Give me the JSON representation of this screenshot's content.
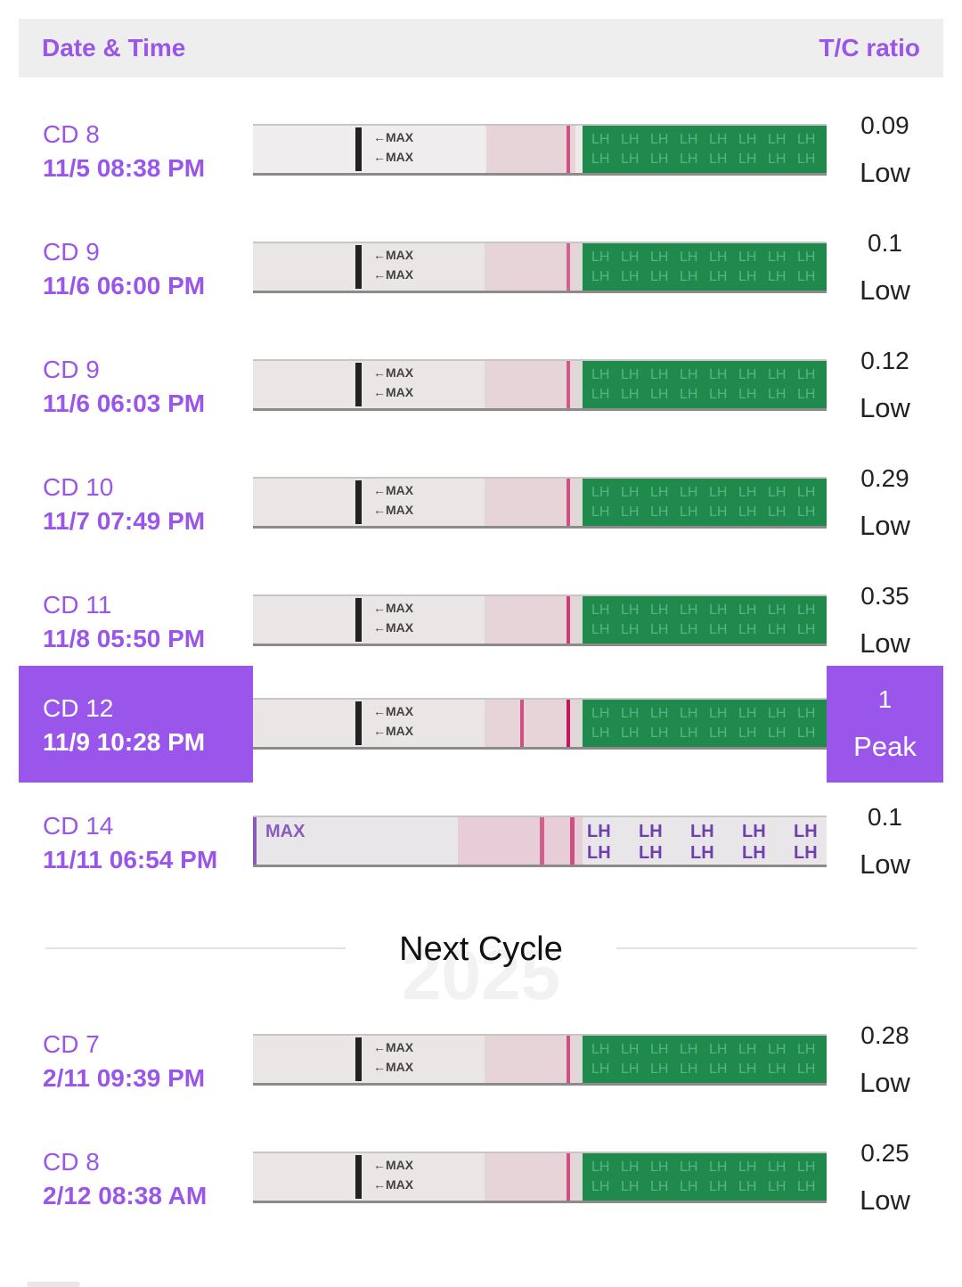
{
  "header": {
    "date_time_label": "Date & Time",
    "ratio_label": "T/C ratio"
  },
  "colors": {
    "accent": "#9a56e8",
    "highlight_bg": "#9a56ea",
    "strip_green": "#1f8a4c"
  },
  "rows": [
    {
      "cd": "CD 8",
      "datetime": "11/5   08:38 PM",
      "ratio": "0.09",
      "level": "Low",
      "highlight": false,
      "strip": {
        "test_line": 0.35,
        "green": true,
        "max_label": "MAX"
      }
    },
    {
      "cd": "CD 9",
      "datetime": "11/6   06:00 PM",
      "ratio": "0.1",
      "level": "Low",
      "highlight": false,
      "strip": {
        "test_line": 0.25,
        "green": true,
        "max_label": "MAX"
      }
    },
    {
      "cd": "CD 9",
      "datetime": "11/6   06:03 PM",
      "ratio": "0.12",
      "level": "Low",
      "highlight": false,
      "strip": {
        "test_line": 0.3,
        "green": true,
        "max_label": "MAX"
      }
    },
    {
      "cd": "CD 10",
      "datetime": "11/7   07:49 PM",
      "ratio": "0.29",
      "level": "Low",
      "highlight": false,
      "strip": {
        "test_line": 0.35,
        "green": true,
        "max_label": "MAX"
      }
    },
    {
      "cd": "CD 11",
      "datetime": "11/8   05:50 PM",
      "ratio": "0.35",
      "level": "Low",
      "highlight": false,
      "strip": {
        "test_line": 0.45,
        "green": true,
        "max_label": "MAX"
      }
    },
    {
      "cd": "CD 12",
      "datetime": "11/9   10:28 PM",
      "ratio": "1",
      "level": "Peak",
      "highlight": true,
      "strip": {
        "test_line": 0.9,
        "green": true,
        "max_label": "MAX"
      }
    },
    {
      "cd": "CD 14",
      "datetime": "11/11   06:54 PM",
      "ratio": "0.1",
      "level": "Low",
      "highlight": false,
      "strip": {
        "test_line": 0.5,
        "green": false,
        "max_label": "MAX"
      }
    },
    {
      "cd": "CD 7",
      "datetime": "2/11   09:39 PM",
      "ratio": "0.28",
      "level": "Low",
      "highlight": false,
      "strip": {
        "test_line": 0.35,
        "green": true,
        "max_label": "MAX"
      }
    },
    {
      "cd": "CD 8",
      "datetime": "2/12   08:38 AM",
      "ratio": "0.25",
      "level": "Low",
      "highlight": false,
      "strip": {
        "test_line": 0.35,
        "green": true,
        "max_label": "MAX"
      }
    }
  ],
  "divider": {
    "label": "Next Cycle",
    "ghost_text": "2025"
  }
}
